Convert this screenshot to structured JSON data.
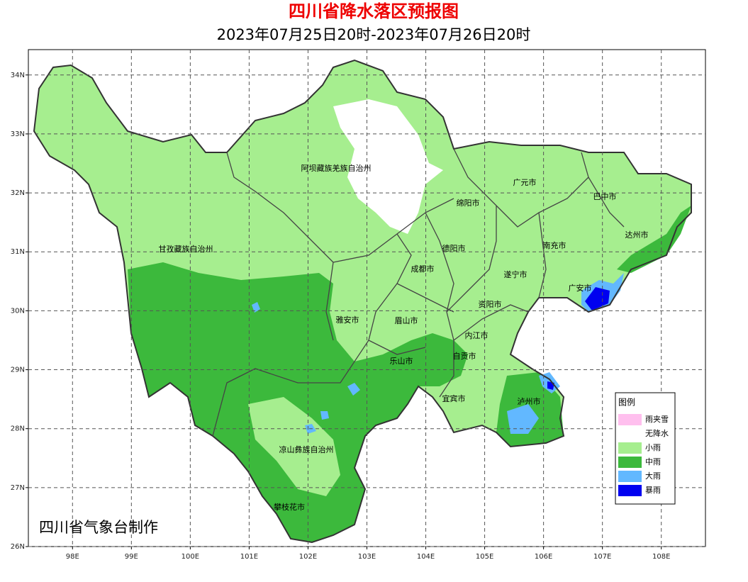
{
  "map": {
    "title": "四川省降水落区预报图",
    "subtitle": "2023年07月25日20时-2023年07月26日20时",
    "credit": "四川省气象台制作",
    "xlim": [
      97.25,
      108.75
    ],
    "ylim": [
      26,
      34.43
    ],
    "xticks": [
      {
        "value": 98,
        "label": "98E"
      },
      {
        "value": 99,
        "label": "99E"
      },
      {
        "value": 100,
        "label": "100E"
      },
      {
        "value": 101,
        "label": "101E"
      },
      {
        "value": 102,
        "label": "102E"
      },
      {
        "value": 103,
        "label": "103E"
      },
      {
        "value": 104,
        "label": "104E"
      },
      {
        "value": 105,
        "label": "105E"
      },
      {
        "value": 106,
        "label": "106E"
      },
      {
        "value": 107,
        "label": "107E"
      },
      {
        "value": 108,
        "label": "108E"
      }
    ],
    "yticks": [
      {
        "value": 26,
        "label": "26N"
      },
      {
        "value": 27,
        "label": "27N"
      },
      {
        "value": 28,
        "label": "28N"
      },
      {
        "value": 29,
        "label": "29N"
      },
      {
        "value": 30,
        "label": "30N"
      },
      {
        "value": 31,
        "label": "31N"
      },
      {
        "value": 32,
        "label": "32N"
      },
      {
        "value": 33,
        "label": "33N"
      },
      {
        "value": 34,
        "label": "34N"
      }
    ],
    "grid": true,
    "regions": [
      "阿坝藏族羌族自治州",
      "广元市",
      "巴中市",
      "绵阳市",
      "达州市",
      "甘孜藏族自治州",
      "德阳市",
      "南充市",
      "成都市",
      "遂宁市",
      "广安市",
      "资阳市",
      "雅安市",
      "眉山市",
      "内江市",
      "自贡市",
      "乐山市",
      "宜宾市",
      "泸州市",
      "凉山彝族自治州",
      "攀枝花市"
    ],
    "legend": {
      "title": "图例",
      "items": [
        {
          "label": "雨夹雪",
          "color": "#ffbfee"
        },
        {
          "label": "无降水",
          "color": "#ffffff"
        },
        {
          "label": "小雨",
          "color": "#a6ee8f"
        },
        {
          "label": "中雨",
          "color": "#3cb93c"
        },
        {
          "label": "大雨",
          "color": "#62b8ff"
        },
        {
          "label": "暴雨",
          "color": "#0000f0"
        }
      ]
    }
  }
}
